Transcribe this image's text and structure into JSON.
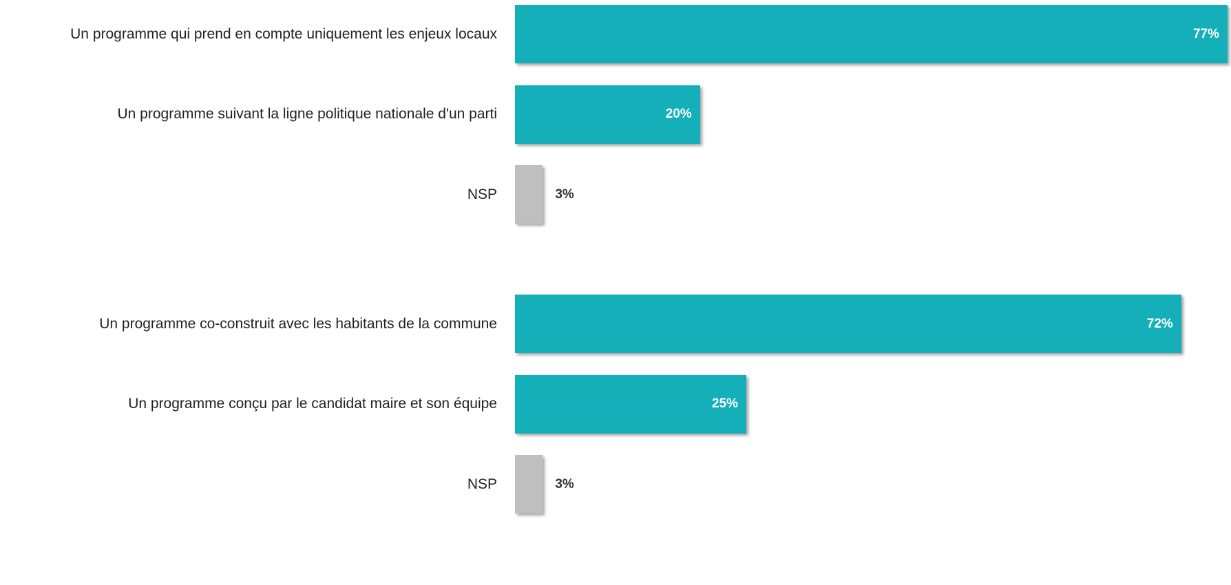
{
  "chart_data": [
    {
      "type": "bar",
      "orientation": "horizontal",
      "categories": [
        "Un programme qui prend en compte uniquement les enjeux locaux",
        "Un programme suivant la ligne politique nationale d'un parti",
        "NSP"
      ],
      "values": [
        77,
        20,
        3
      ],
      "value_labels": [
        "77%",
        "20%",
        "3%"
      ],
      "colors": [
        "#14afb8",
        "#14afb8",
        "#bfbfbf"
      ]
    },
    {
      "type": "bar",
      "orientation": "horizontal",
      "categories": [
        "Un programme co-construit avec les habitants de la commune",
        "Un programme conçu par le candidat maire et son équipe",
        "NSP"
      ],
      "values": [
        72,
        25,
        3
      ],
      "value_labels": [
        "72%",
        "25%",
        "3%"
      ],
      "colors": [
        "#14afb8",
        "#14afb8",
        "#bfbfbf"
      ]
    }
  ]
}
